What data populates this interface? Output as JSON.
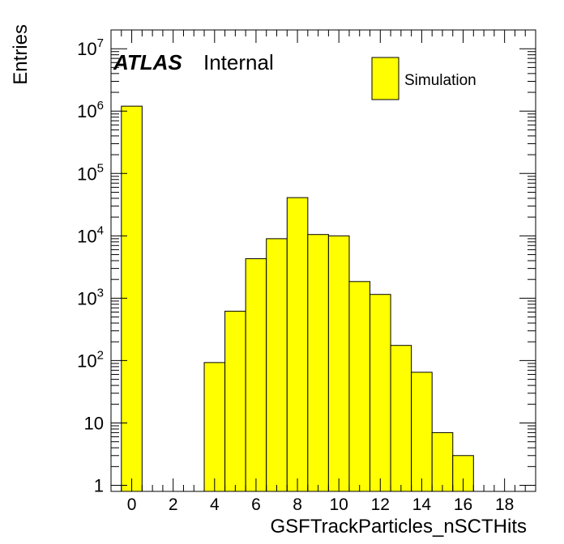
{
  "chart_data": {
    "type": "bar",
    "histogram": true,
    "xlabel": "GSFTrackParticles_nSCTHits",
    "ylabel": "Entries",
    "xlim": [
      -1,
      19.5
    ],
    "ylim": [
      0.8,
      20000000
    ],
    "yscale": "log",
    "bin_width": 1,
    "x": [
      0,
      4,
      5,
      6,
      7,
      8,
      9,
      10,
      11,
      12,
      13,
      14,
      15,
      16
    ],
    "values": [
      1200000,
      93,
      620,
      4300,
      9000,
      41000,
      10500,
      10000,
      1850,
      1150,
      175,
      65,
      7,
      3
    ],
    "x_ticks": [
      "0",
      "2",
      "4",
      "6",
      "8",
      "10",
      "12",
      "14",
      "16",
      "18"
    ],
    "y_ticks": [
      {
        "value": 1,
        "mant": "1",
        "exp": ""
      },
      {
        "value": 10,
        "mant": "10",
        "exp": ""
      },
      {
        "value": 100,
        "mant": "10",
        "exp": "2"
      },
      {
        "value": 1000,
        "mant": "10",
        "exp": "3"
      },
      {
        "value": 10000,
        "mant": "10",
        "exp": "4"
      },
      {
        "value": 100000,
        "mant": "10",
        "exp": "5"
      },
      {
        "value": 1000000,
        "mant": "10",
        "exp": "6"
      },
      {
        "value": 10000000,
        "mant": "10",
        "exp": "7"
      }
    ],
    "fill_color": "#ffff00",
    "label_atlas": "ATLAS",
    "label_status": "Internal",
    "legend": {
      "entries": [
        "Simulation"
      ],
      "placement": "top-right"
    }
  }
}
